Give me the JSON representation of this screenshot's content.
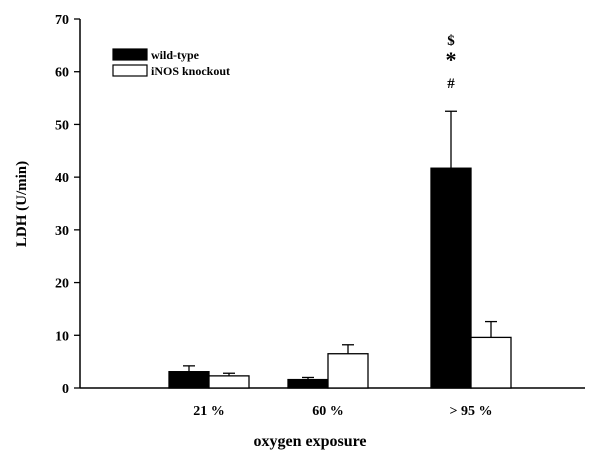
{
  "chart_data": {
    "type": "bar",
    "xlabel": "oxygen exposure",
    "ylabel": "LDH (U/min)",
    "ylim": [
      0,
      70
    ],
    "yticks": [
      0,
      10,
      20,
      30,
      40,
      50,
      60,
      70
    ],
    "categories": [
      "21 %",
      "60 %",
      "> 95 %"
    ],
    "series": [
      {
        "name": "wild-type",
        "values": [
          3.1,
          1.6,
          41.7
        ],
        "errors": [
          1.1,
          0.4,
          10.8
        ],
        "color": "#000000"
      },
      {
        "name": "iNOS knockout",
        "values": [
          2.3,
          6.5,
          9.6
        ],
        "errors": [
          0.5,
          1.7,
          3.0
        ],
        "color": "#ffffff"
      }
    ],
    "annotations": [
      {
        "category": "> 95 %",
        "series": "wild-type",
        "symbols": [
          "$",
          "*",
          "#"
        ]
      }
    ],
    "legend_position": "top-left",
    "grid": false
  }
}
